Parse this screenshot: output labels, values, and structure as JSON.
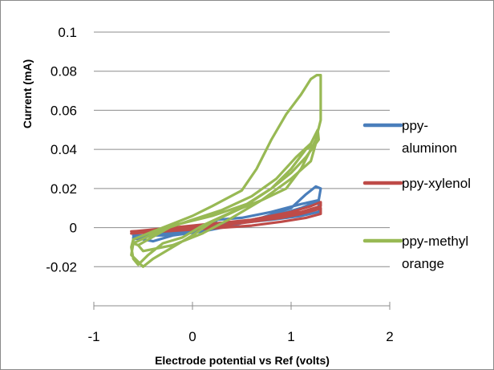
{
  "chart_data": {
    "type": "scatter",
    "title": "",
    "xlabel": "Electrode potential vs Ref (volts)",
    "ylabel": "Current (mA)",
    "xlim": [
      -1,
      2
    ],
    "ylim": [
      -0.04,
      0.1
    ],
    "x_ticks": [
      "-1",
      "0",
      "1",
      "2"
    ],
    "y_ticks": [
      "-0.02",
      "0",
      "0.02",
      "0.04",
      "0.06",
      "0.08",
      "0.1"
    ],
    "grid": true,
    "legend_position": "right",
    "series": [
      {
        "name": "ppy-aluminon",
        "legend_lines": [
          "ppy-",
          "aluminon"
        ],
        "color": "#4a7ebb",
        "points": [
          [
            -0.6,
            -0.003
          ],
          [
            -0.3,
            -0.001
          ],
          [
            0.0,
            0.0
          ],
          [
            0.3,
            0.002
          ],
          [
            0.6,
            0.004
          ],
          [
            0.9,
            0.007
          ],
          [
            1.1,
            0.01
          ],
          [
            1.2,
            0.012
          ],
          [
            1.28,
            0.014
          ],
          [
            1.28,
            0.008
          ],
          [
            1.1,
            0.006
          ],
          [
            0.8,
            0.004
          ],
          [
            0.4,
            0.002
          ],
          [
            0.0,
            -0.001
          ],
          [
            -0.3,
            -0.003
          ],
          [
            -0.6,
            -0.006
          ],
          [
            -0.6,
            -0.005
          ],
          [
            -0.4,
            -0.007
          ],
          [
            -0.2,
            -0.004
          ],
          [
            0.1,
            -0.002
          ],
          [
            0.4,
            0.001
          ],
          [
            0.7,
            0.005
          ],
          [
            1.0,
            0.01
          ],
          [
            1.15,
            0.017
          ],
          [
            1.25,
            0.021
          ],
          [
            1.3,
            0.02
          ],
          [
            1.28,
            0.014
          ],
          [
            1.1,
            0.012
          ],
          [
            0.8,
            0.008
          ],
          [
            0.5,
            0.005
          ],
          [
            0.25,
            0.004
          ],
          [
            0.2,
            0.001
          ],
          [
            0.0,
            -0.002
          ],
          [
            -0.3,
            -0.004
          ],
          [
            -0.6,
            -0.004
          ]
        ]
      },
      {
        "name": "ppy-xylenol",
        "legend_lines": [
          "ppy-xylenol"
        ],
        "color": "#be4b48",
        "points": [
          [
            -0.62,
            -0.002
          ],
          [
            -0.3,
            -0.001
          ],
          [
            0.0,
            0.0
          ],
          [
            0.3,
            0.001
          ],
          [
            0.6,
            0.003
          ],
          [
            0.9,
            0.005
          ],
          [
            1.1,
            0.007
          ],
          [
            1.25,
            0.009
          ],
          [
            1.3,
            0.01
          ],
          [
            1.3,
            0.007
          ],
          [
            1.15,
            0.005
          ],
          [
            0.9,
            0.003
          ],
          [
            0.6,
            0.001
          ],
          [
            0.3,
            0.0
          ],
          [
            0.0,
            -0.001
          ],
          [
            -0.3,
            -0.002
          ],
          [
            -0.62,
            -0.003
          ],
          [
            -0.6,
            -0.002
          ],
          [
            -0.2,
            0.0
          ],
          [
            0.2,
            0.002
          ],
          [
            0.6,
            0.004
          ],
          [
            1.0,
            0.008
          ],
          [
            1.2,
            0.011
          ],
          [
            1.3,
            0.013
          ],
          [
            1.3,
            0.011
          ],
          [
            1.1,
            0.008
          ],
          [
            0.7,
            0.004
          ],
          [
            0.3,
            0.001
          ],
          [
            -0.1,
            -0.001
          ],
          [
            -0.6,
            -0.002
          ]
        ]
      },
      {
        "name": "ppy-methyl orange",
        "legend_lines": [
          "ppy-methyl",
          "orange"
        ],
        "color": "#98b954",
        "points": [
          [
            -0.6,
            -0.006
          ],
          [
            -0.4,
            -0.002
          ],
          [
            -0.2,
            0.002
          ],
          [
            0.0,
            0.006
          ],
          [
            0.2,
            0.011
          ],
          [
            0.5,
            0.019
          ],
          [
            0.65,
            0.03
          ],
          [
            0.8,
            0.045
          ],
          [
            0.95,
            0.058
          ],
          [
            1.1,
            0.068
          ],
          [
            1.2,
            0.076
          ],
          [
            1.26,
            0.078
          ],
          [
            1.3,
            0.078
          ],
          [
            1.3,
            0.055
          ],
          [
            1.25,
            0.045
          ],
          [
            1.1,
            0.03
          ],
          [
            0.95,
            0.02
          ],
          [
            0.7,
            0.014
          ],
          [
            0.4,
            0.008
          ],
          [
            0.1,
            0.001
          ],
          [
            -0.1,
            -0.005
          ],
          [
            -0.3,
            -0.008
          ],
          [
            -0.45,
            -0.014
          ],
          [
            -0.55,
            -0.019
          ],
          [
            -0.6,
            -0.016
          ],
          [
            -0.62,
            -0.01
          ],
          [
            -0.6,
            -0.006
          ],
          [
            -0.6,
            -0.008
          ],
          [
            -0.3,
            -0.001
          ],
          [
            0.0,
            0.004
          ],
          [
            0.3,
            0.009
          ],
          [
            0.6,
            0.016
          ],
          [
            0.85,
            0.025
          ],
          [
            1.05,
            0.036
          ],
          [
            1.2,
            0.043
          ],
          [
            1.27,
            0.05
          ],
          [
            1.28,
            0.045
          ],
          [
            1.15,
            0.036
          ],
          [
            1.0,
            0.028
          ],
          [
            0.8,
            0.02
          ],
          [
            0.5,
            0.01
          ],
          [
            0.2,
            0.003
          ],
          [
            0.0,
            -0.004
          ],
          [
            -0.2,
            -0.01
          ],
          [
            -0.4,
            -0.016
          ],
          [
            -0.5,
            -0.02
          ],
          [
            -0.62,
            -0.014
          ],
          [
            -0.6,
            -0.008
          ],
          [
            -0.55,
            -0.009
          ],
          [
            -0.2,
            0.001
          ],
          [
            0.2,
            0.006
          ],
          [
            0.55,
            0.012
          ],
          [
            0.8,
            0.02
          ],
          [
            1.0,
            0.03
          ],
          [
            1.15,
            0.04
          ],
          [
            1.25,
            0.043
          ],
          [
            1.2,
            0.034
          ],
          [
            1.0,
            0.025
          ],
          [
            0.7,
            0.014
          ],
          [
            0.4,
            0.005
          ],
          [
            0.1,
            -0.003
          ],
          [
            -0.2,
            -0.009
          ],
          [
            -0.5,
            -0.012
          ],
          [
            -0.55,
            -0.009
          ]
        ]
      }
    ]
  }
}
